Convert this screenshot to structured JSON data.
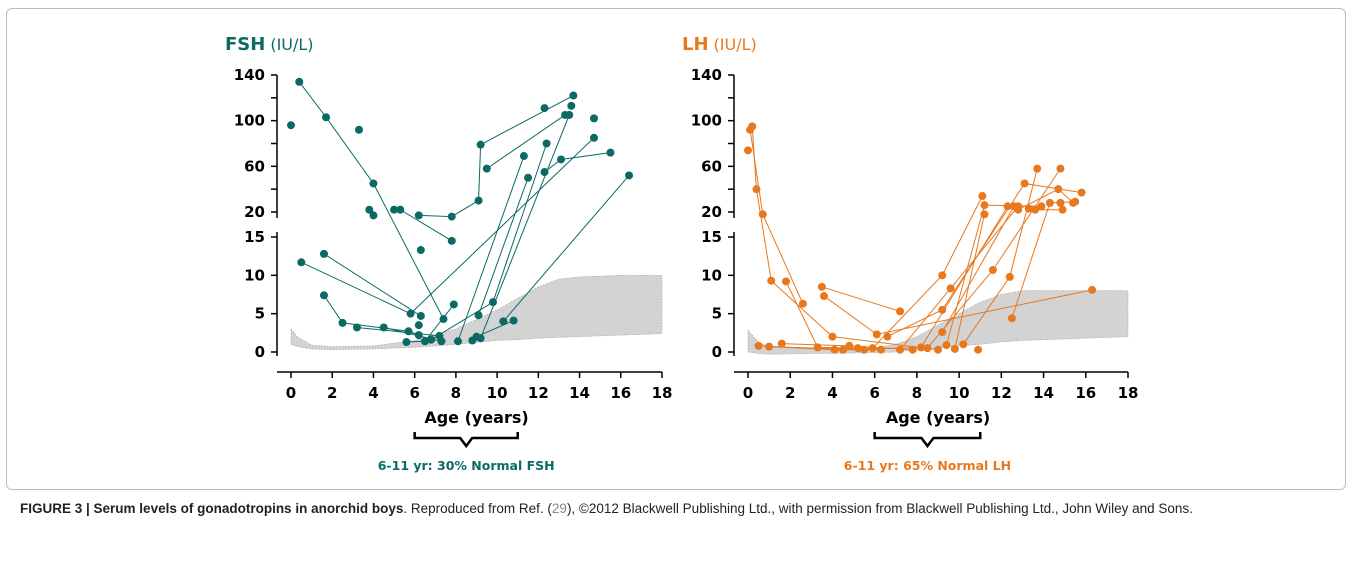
{
  "chart_data": [
    {
      "type": "scatter",
      "title": "FSH",
      "unit": "(IU/L)",
      "xlabel": "Age (years)",
      "color": "#0b6a64",
      "xlim": [
        0,
        18
      ],
      "xticks": [
        0,
        2,
        4,
        6,
        8,
        10,
        12,
        14,
        16,
        18
      ],
      "ylim": [
        0,
        15
      ],
      "yticks": [
        0,
        5,
        10,
        15
      ],
      "ylim_upper": [
        20,
        140
      ],
      "yticks_upper": [
        20,
        60,
        100,
        140
      ],
      "minor_yticks_upper": [
        40,
        80,
        120
      ],
      "annotation": "6-11 yr: 30%  Normal FSH",
      "bracket_x": [
        6,
        11
      ],
      "normal_range": {
        "color": "#d3d3d3",
        "x": [
          0,
          0.3,
          1,
          2,
          4,
          6,
          8,
          10,
          11,
          12,
          13,
          14,
          16,
          18
        ],
        "upper": [
          3.0,
          2.0,
          0.9,
          0.7,
          0.8,
          1.5,
          3.0,
          5.5,
          7.0,
          8.5,
          9.5,
          9.8,
          10,
          10
        ],
        "lower": [
          1.0,
          0.7,
          0.4,
          0.3,
          0.4,
          0.6,
          1.0,
          1.5,
          1.6,
          1.8,
          1.9,
          2.0,
          2.2,
          2.4
        ]
      },
      "patients": [
        {
          "x": [
            0
          ],
          "y": [
            96
          ]
        },
        {
          "x": [
            0.4,
            1.7,
            4.0,
            7.4
          ],
          "y": [
            134,
            103,
            45,
            4.3
          ]
        },
        {
          "x": [
            3.3
          ],
          "y": [
            92
          ]
        },
        {
          "x": [
            3.8
          ],
          "y": [
            22
          ]
        },
        {
          "x": [
            4.0
          ],
          "y": [
            17
          ]
        },
        {
          "x": [
            5.0,
            5.3,
            7.8
          ],
          "y": [
            22,
            22,
            14.5
          ]
        },
        {
          "x": [
            6.2,
            7.8,
            9.1,
            9.2,
            13.7
          ],
          "y": [
            17,
            16,
            30,
            79,
            122
          ]
        },
        {
          "x": [
            9.5,
            13.3
          ],
          "y": [
            58,
            105
          ]
        },
        {
          "x": [
            12.3,
            13.1,
            15.5
          ],
          "y": [
            55,
            66,
            72
          ]
        },
        {
          "x": [
            12.3
          ],
          "y": [
            111
          ]
        },
        {
          "x": [
            13.6
          ],
          "y": [
            113
          ]
        },
        {
          "x": [
            14.7
          ],
          "y": [
            102
          ]
        },
        {
          "x": [
            0.5,
            5.8,
            14.7
          ],
          "y": [
            11.7,
            5.0,
            85
          ]
        },
        {
          "x": [
            1.6,
            6.3
          ],
          "y": [
            12.8,
            4.7
          ]
        },
        {
          "x": [
            1.6,
            2.5,
            5.7,
            6.2
          ],
          "y": [
            7.4,
            3.8,
            2.7,
            2.2
          ]
        },
        {
          "x": [
            3.2,
            7.2
          ],
          "y": [
            3.2,
            2.1
          ]
        },
        {
          "x": [
            4.5,
            7.3
          ],
          "y": [
            3.2,
            1.4
          ]
        },
        {
          "x": [
            6.2
          ],
          "y": [
            3.5
          ]
        },
        {
          "x": [
            6.3
          ],
          "y": [
            13.3
          ]
        },
        {
          "x": [
            5.6,
            6.5,
            7.9
          ],
          "y": [
            1.3,
            1.4,
            6.2
          ]
        },
        {
          "x": [
            6.8,
            9.8,
            12.4
          ],
          "y": [
            1.6,
            6.5,
            80
          ]
        },
        {
          "x": [
            8.1,
            11.3
          ],
          "y": [
            1.4,
            69
          ]
        },
        {
          "x": [
            8.8,
            9.2,
            13.5
          ],
          "y": [
            1.5,
            1.8,
            105
          ]
        },
        {
          "x": [
            9.0,
            10.8
          ],
          "y": [
            2.0,
            4.1
          ]
        },
        {
          "x": [
            9.1,
            11.5
          ],
          "y": [
            4.8,
            50
          ]
        },
        {
          "x": [
            10.3,
            16.4
          ],
          "y": [
            4.0,
            52
          ]
        }
      ]
    },
    {
      "type": "scatter",
      "title": "LH",
      "unit": "(IU/L)",
      "xlabel": "Age (years)",
      "color": "#e8781e",
      "xlim": [
        0,
        18
      ],
      "xticks": [
        0,
        2,
        4,
        6,
        8,
        10,
        12,
        14,
        16,
        18
      ],
      "ylim": [
        0,
        15
      ],
      "yticks": [
        0,
        5,
        10,
        15
      ],
      "ylim_upper": [
        20,
        140
      ],
      "yticks_upper": [
        20,
        60,
        100,
        140
      ],
      "minor_yticks_upper": [
        40,
        80,
        120
      ],
      "annotation": "6-11 yr: 65%  Normal LH",
      "bracket_x": [
        6,
        11
      ],
      "normal_range": {
        "color": "#d3d3d3",
        "x": [
          0,
          0.5,
          1,
          3,
          6,
          7,
          8,
          9,
          10,
          11,
          12,
          13,
          18
        ],
        "upper": [
          2.8,
          1.3,
          0.6,
          0.4,
          0.5,
          1.0,
          2.0,
          3.5,
          5.0,
          6.5,
          7.5,
          8.0,
          8.0
        ],
        "lower": [
          0,
          -0.2,
          -0.3,
          -0.2,
          -0.1,
          0,
          0.3,
          0.5,
          0.8,
          1.0,
          1.3,
          1.5,
          2.0
        ]
      },
      "patients": [
        {
          "x": [
            0
          ],
          "y": [
            74
          ]
        },
        {
          "x": [
            0.1,
            0.7,
            2.6
          ],
          "y": [
            92,
            18,
            6.3
          ]
        },
        {
          "x": [
            0.2,
            0.4,
            1.1,
            4.0,
            9.0
          ],
          "y": [
            95,
            40,
            9.3,
            2.0,
            0.3
          ]
        },
        {
          "x": [
            0.5,
            4.1,
            6.3
          ],
          "y": [
            0.8,
            0.3,
            0.3
          ]
        },
        {
          "x": [
            1.0,
            5.5
          ],
          "y": [
            0.7,
            0.3
          ]
        },
        {
          "x": [
            1.6,
            4.8,
            7.8
          ],
          "y": [
            1.1,
            0.8,
            0.3
          ]
        },
        {
          "x": [
            1.8,
            3.3,
            5.2
          ],
          "y": [
            9.2,
            0.6,
            0.5
          ]
        },
        {
          "x": [
            3.5,
            7.2
          ],
          "y": [
            8.5,
            5.3
          ]
        },
        {
          "x": [
            3.6,
            6.1,
            16.3
          ],
          "y": [
            7.3,
            2.3,
            8.1
          ]
        },
        {
          "x": [
            4.5,
            8.2,
            12.3
          ],
          "y": [
            0.3,
            0.6,
            25
          ]
        },
        {
          "x": [
            5.9,
            9.2,
            11.1
          ],
          "y": [
            0.5,
            10.0,
            34
          ]
        },
        {
          "x": [
            6.6,
            9.2,
            13.1,
            15.8
          ],
          "y": [
            2.0,
            5.5,
            45,
            37
          ]
        },
        {
          "x": [
            7.2,
            9.6,
            12.8
          ],
          "y": [
            0.3,
            8.3,
            25
          ]
        },
        {
          "x": [
            8.5,
            11.6,
            14.8
          ],
          "y": [
            0.5,
            10.7,
            58
          ]
        },
        {
          "x": [
            9.2,
            12.6
          ],
          "y": [
            2.6,
            25
          ]
        },
        {
          "x": [
            9.4,
            11.2,
            13.9
          ],
          "y": [
            0.9,
            26,
            25
          ]
        },
        {
          "x": [
            9.8,
            11.2
          ],
          "y": [
            0.4,
            18
          ]
        },
        {
          "x": [
            10.2,
            12.4,
            13.7
          ],
          "y": [
            1.0,
            9.8,
            58
          ]
        },
        {
          "x": [
            10.9
          ],
          "y": [
            0.3
          ]
        },
        {
          "x": [
            12.5,
            14.3,
            15.5
          ],
          "y": [
            4.4,
            28,
            29
          ]
        },
        {
          "x": [
            12.8,
            14.7,
            15.4
          ],
          "y": [
            22,
            40,
            28
          ]
        },
        {
          "x": [
            13.3,
            13.6,
            14.9
          ],
          "y": [
            23,
            22,
            22
          ]
        },
        {
          "x": [
            14.8
          ],
          "y": [
            28
          ]
        }
      ]
    }
  ],
  "caption": {
    "label": "FIGURE 3 | Serum levels of gonadotropins in anorchid boys",
    "text": ". Reproduced from Ref. (",
    "ref": "29",
    "rest": "), ©2012 Blackwell Publishing Ltd., with permission from Blackwell Publishing Ltd., John Wiley and Sons."
  }
}
